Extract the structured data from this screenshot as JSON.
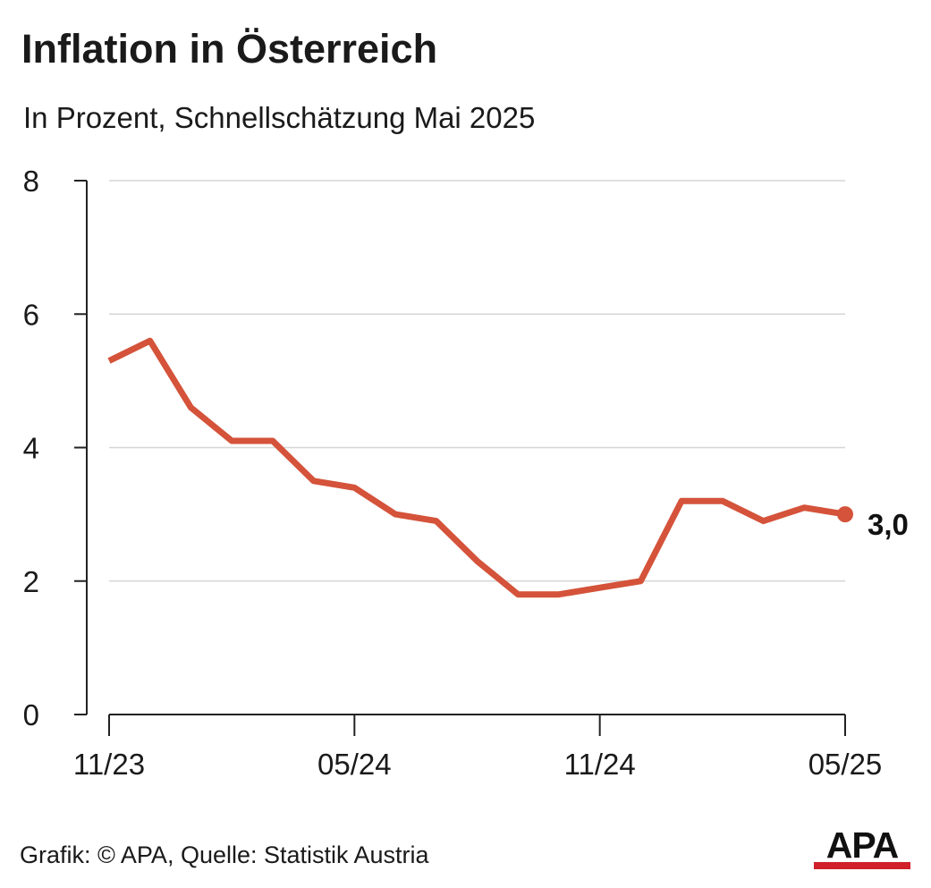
{
  "header": {
    "title": "Inflation in Österreich",
    "subtitle": "In Prozent, Schnellschätzung Mai 2025"
  },
  "chart_data": {
    "type": "line",
    "title": "Inflation in Österreich",
    "subtitle": "In Prozent, Schnellschätzung Mai 2025",
    "xlabel": "",
    "ylabel": "",
    "x": [
      "11/23",
      "12/23",
      "01/24",
      "02/24",
      "03/24",
      "04/24",
      "05/24",
      "06/24",
      "07/24",
      "08/24",
      "09/24",
      "10/24",
      "11/24",
      "12/24",
      "01/25",
      "02/25",
      "03/25",
      "04/25",
      "05/25"
    ],
    "x_tick_labels": [
      "11/23",
      "05/24",
      "11/24",
      "05/25"
    ],
    "series": [
      {
        "values": [
          5.3,
          5.6,
          4.6,
          4.1,
          4.1,
          3.5,
          3.4,
          3.0,
          2.9,
          2.3,
          1.8,
          1.8,
          1.9,
          2.0,
          3.2,
          3.2,
          2.9,
          3.1,
          3.0
        ]
      }
    ],
    "end_label": "3,0",
    "ylim": [
      0,
      8
    ],
    "y_ticks": [
      0,
      2,
      4,
      6,
      8
    ],
    "grid": true,
    "line_color": "#d4533a"
  },
  "footer": {
    "source": "Grafik: © APA, Quelle: Statistik Austria",
    "logo_text": "APA"
  }
}
